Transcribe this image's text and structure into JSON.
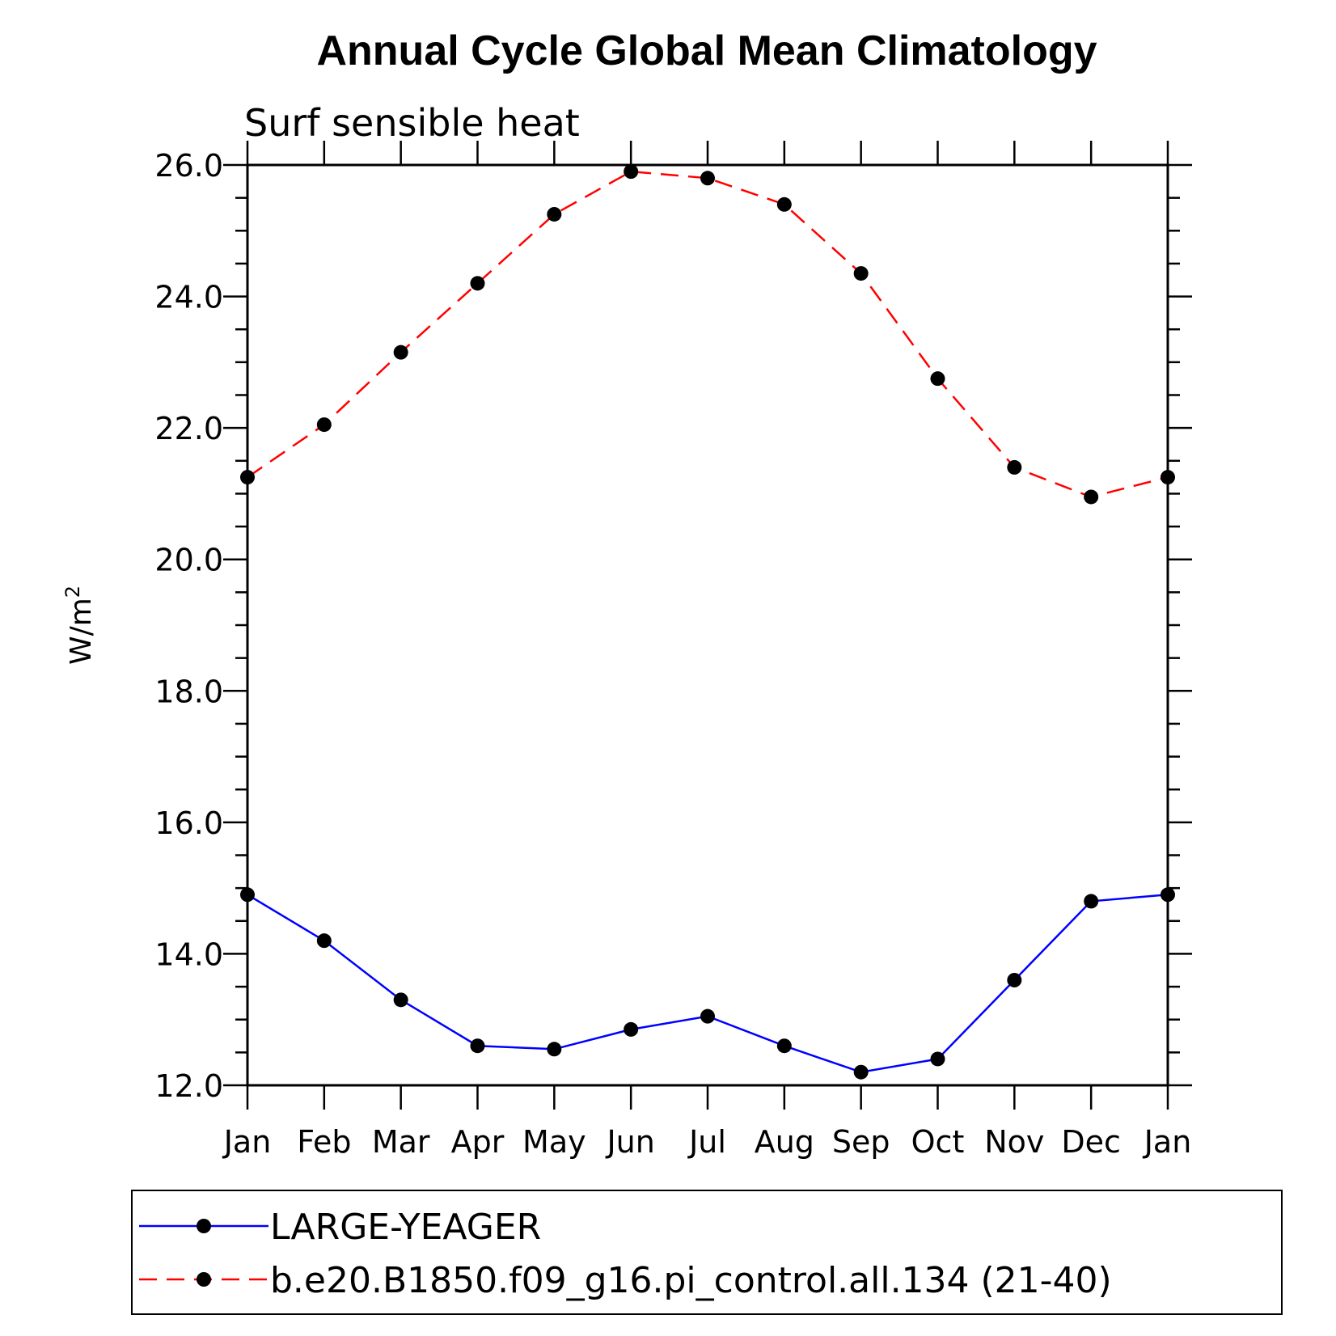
{
  "chart_data": {
    "type": "line",
    "title": "Annual Cycle Global Mean Climatology",
    "subtitle": "Surf sensible heat",
    "ylabel_base": "W/m",
    "ylabel_sup": "2",
    "xlabel": "",
    "ylim": [
      12.0,
      26.0
    ],
    "yticks": [
      "12.0",
      "14.0",
      "16.0",
      "18.0",
      "20.0",
      "22.0",
      "24.0",
      "26.0"
    ],
    "categories": [
      "Jan",
      "Feb",
      "Mar",
      "Apr",
      "May",
      "Jun",
      "Jul",
      "Aug",
      "Sep",
      "Oct",
      "Nov",
      "Dec",
      "Jan"
    ],
    "series": [
      {
        "name": "LARGE-YEAGER",
        "color": "#0000ff",
        "dash": "solid",
        "values": [
          14.9,
          14.2,
          13.3,
          12.6,
          12.55,
          12.85,
          13.05,
          12.6,
          12.2,
          12.4,
          13.6,
          14.8,
          14.9
        ]
      },
      {
        "name": "b.e20.B1850.f09_g16.pi_control.all.134 (21-40)",
        "color": "#ff0000",
        "dash": "dashed",
        "values": [
          21.25,
          22.05,
          23.15,
          24.2,
          25.25,
          25.9,
          25.8,
          25.4,
          24.35,
          22.75,
          21.4,
          20.95,
          21.25
        ]
      }
    ],
    "legend_position": "bottom",
    "grid": false
  }
}
